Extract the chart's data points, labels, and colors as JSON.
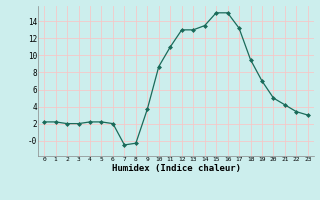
{
  "x": [
    0,
    1,
    2,
    3,
    4,
    5,
    6,
    7,
    8,
    9,
    10,
    11,
    12,
    13,
    14,
    15,
    16,
    17,
    18,
    19,
    20,
    21,
    22,
    23
  ],
  "y": [
    2.2,
    2.2,
    2.0,
    2.0,
    2.2,
    2.2,
    2.0,
    -0.5,
    -0.3,
    3.7,
    8.7,
    11.0,
    13.0,
    13.0,
    13.5,
    15.0,
    15.0,
    13.2,
    9.5,
    7.0,
    5.0,
    4.2,
    3.4,
    3.0
  ],
  "line_color": "#1a6b5a",
  "marker": "D",
  "marker_size": 2.0,
  "bg_color": "#cceeed",
  "grid_color": "#f5c8c8",
  "xlabel": "Humidex (Indice chaleur)",
  "xlim": [
    -0.5,
    23.5
  ],
  "ylim": [
    -1.8,
    15.8
  ],
  "yticks": [
    0,
    2,
    4,
    6,
    8,
    10,
    12,
    14
  ],
  "ytick_labels": [
    "-0",
    "2",
    "4",
    "6",
    "8",
    "10",
    "12",
    "14"
  ],
  "xticks": [
    0,
    1,
    2,
    3,
    4,
    5,
    6,
    7,
    8,
    9,
    10,
    11,
    12,
    13,
    14,
    15,
    16,
    17,
    18,
    19,
    20,
    21,
    22,
    23
  ],
  "xtick_labels": [
    "0",
    "1",
    "2",
    "3",
    "4",
    "5",
    "6",
    "7",
    "8",
    "9",
    "10",
    "11",
    "12",
    "13",
    "14",
    "15",
    "16",
    "17",
    "18",
    "19",
    "20",
    "21",
    "22",
    "23"
  ]
}
